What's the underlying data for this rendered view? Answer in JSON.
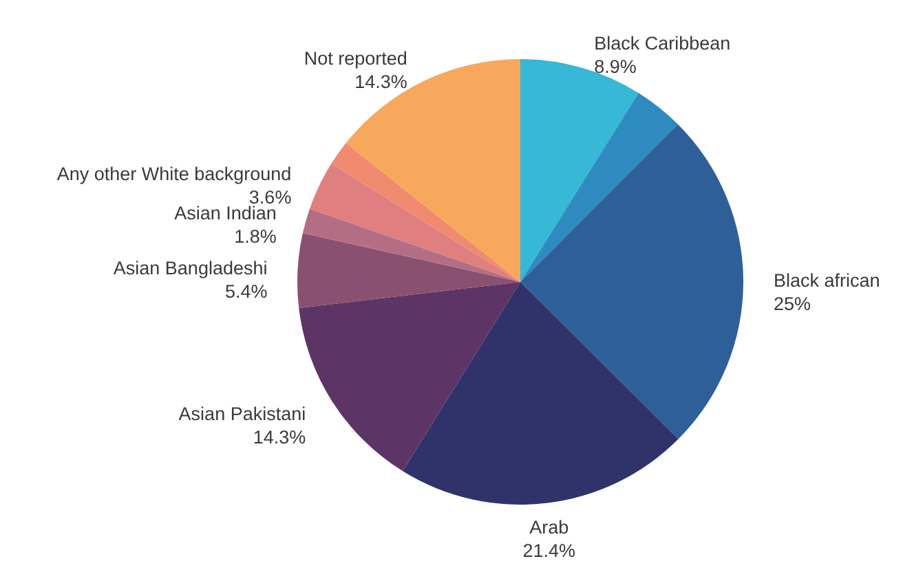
{
  "chart_data": {
    "type": "pie",
    "categories": [
      "Black Caribbean",
      null,
      "Black african",
      "Arab",
      "Asian Pakistani",
      "Asian Bangladeshi",
      "Asian Indian",
      "Any other White background",
      null,
      "Not reported"
    ],
    "values": [
      8.9,
      3.6,
      25,
      21.4,
      14.3,
      5.4,
      1.8,
      3.6,
      1.8,
      14.3
    ],
    "value_labels": [
      "8.9%",
      null,
      "25%",
      "21.4%",
      "14.3%",
      "5.4%",
      "1.8%",
      "3.6%",
      null,
      "14.3%"
    ],
    "colors": [
      "#36b8d6",
      "#2e8bbf",
      "#2f5f98",
      "#30326a",
      "#5c3566",
      "#8a506f",
      "#b46e84",
      "#e07f80",
      "#f08b70",
      "#f7a85c"
    ]
  }
}
